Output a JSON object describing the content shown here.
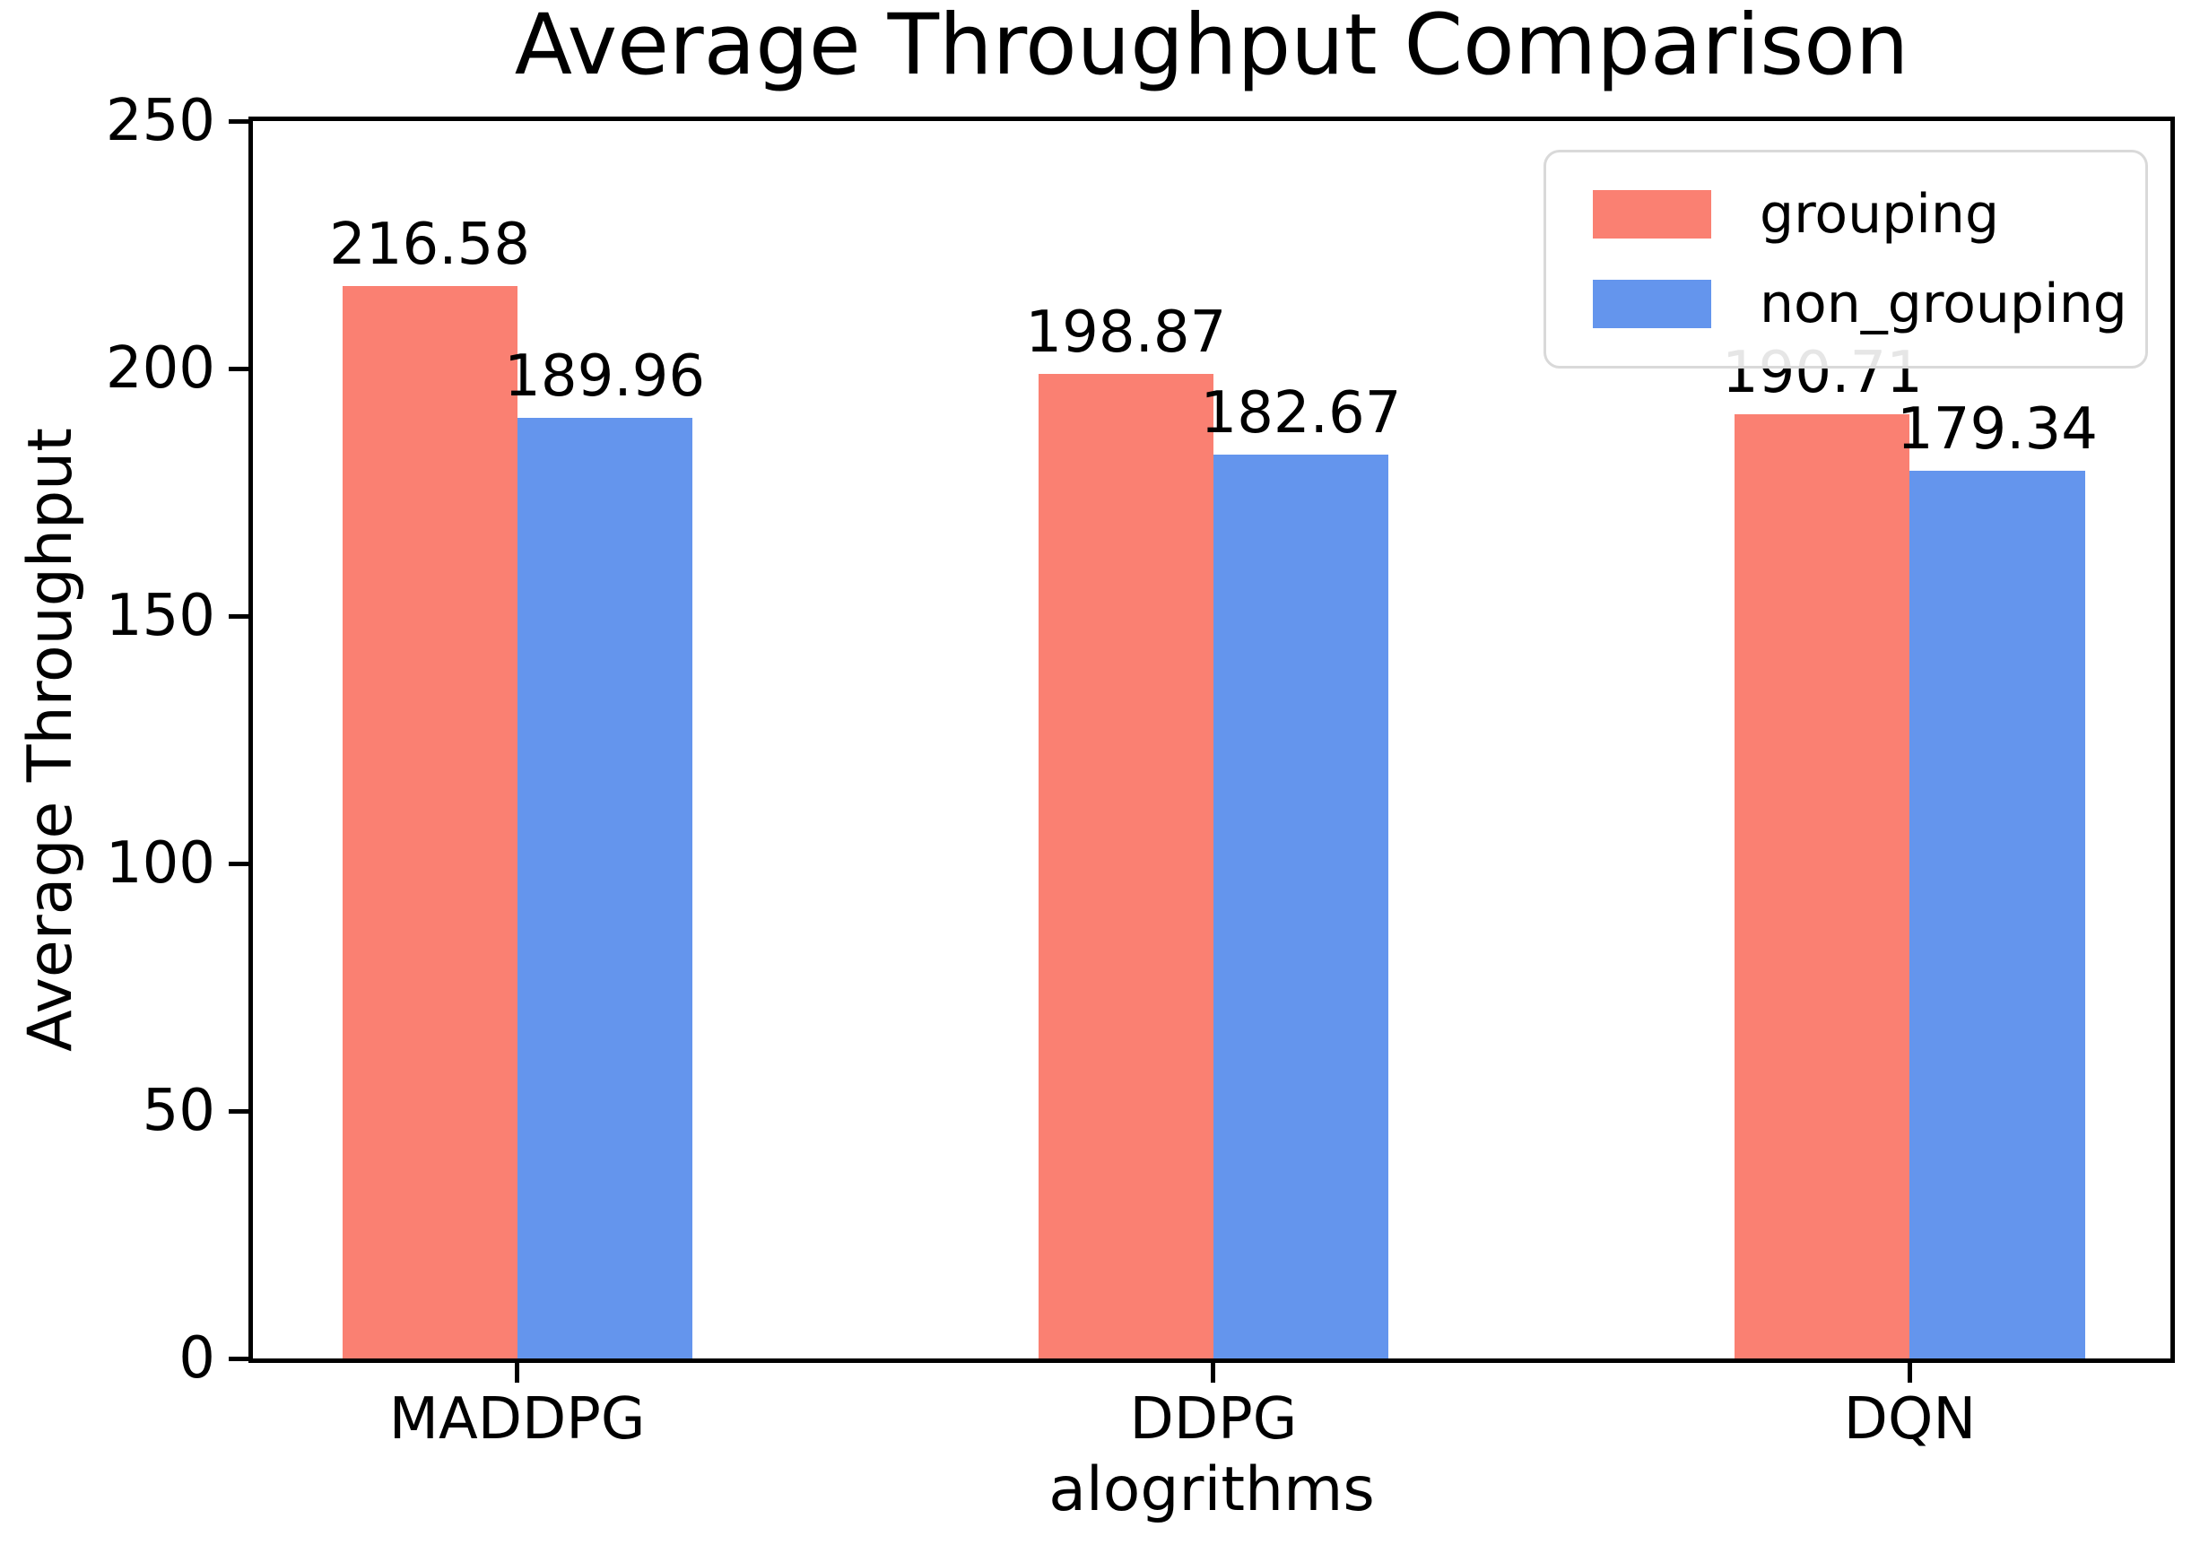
{
  "chart_data": {
    "type": "bar",
    "title": "Average Throughput Comparison",
    "xlabel": "alogrithms",
    "ylabel": "Average Throughput",
    "categories": [
      "MADDPG",
      "DDPG",
      "DQN"
    ],
    "series": [
      {
        "name": "grouping",
        "color": "#fa8072",
        "values": [
          216.58,
          198.87,
          190.71
        ]
      },
      {
        "name": "non_grouping",
        "color": "#6495ed",
        "values": [
          189.96,
          182.67,
          179.34
        ]
      }
    ],
    "value_label_format": "2dp",
    "ylim": [
      0,
      250
    ],
    "yticks": [
      0,
      50,
      100,
      150,
      200,
      250
    ],
    "grid": false,
    "legend_position": "upper right"
  }
}
